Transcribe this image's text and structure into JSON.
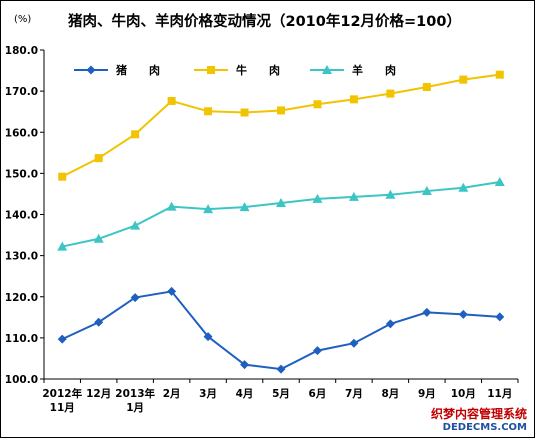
{
  "chart_data": {
    "type": "line",
    "title": "猪肉、牛肉、羊肉价格变动情况（2010年12月价格=100）",
    "unit": "(%)",
    "categories": [
      [
        "2012年",
        "11月"
      ],
      [
        "12月"
      ],
      [
        "2013年",
        "1月"
      ],
      [
        "2月"
      ],
      [
        "3月"
      ],
      [
        "4月"
      ],
      [
        "5月"
      ],
      [
        "6月"
      ],
      [
        "7月"
      ],
      [
        "8月"
      ],
      [
        "9月"
      ],
      [
        "10月"
      ],
      [
        "11月"
      ]
    ],
    "ylim": [
      100,
      180
    ],
    "yticks": [
      "100.0",
      "110.0",
      "120.0",
      "130.0",
      "140.0",
      "150.0",
      "160.0",
      "170.0",
      "180.0"
    ],
    "legend_position": "top-left",
    "series": [
      {
        "name": "猪　　肉",
        "color": "#1f5fbf",
        "marker": "diamond",
        "values": [
          109.7,
          113.8,
          119.8,
          121.3,
          110.3,
          103.5,
          102.4,
          106.9,
          108.7,
          113.4,
          116.2,
          115.7,
          115.1
        ]
      },
      {
        "name": "牛　　肉",
        "color": "#f2c300",
        "marker": "square",
        "values": [
          149.2,
          153.7,
          159.5,
          167.6,
          165.1,
          164.8,
          165.3,
          166.8,
          168.0,
          169.4,
          171.0,
          172.8,
          174.0
        ]
      },
      {
        "name": "羊　　肉",
        "color": "#3cc5c5",
        "marker": "triangle",
        "values": [
          132.2,
          134.1,
          137.3,
          141.9,
          141.3,
          141.8,
          142.8,
          143.8,
          144.3,
          144.8,
          145.7,
          146.5,
          147.9
        ]
      }
    ]
  },
  "watermark": {
    "line1": "织梦内容管理系统",
    "line2": "DEDECMS.COM"
  }
}
